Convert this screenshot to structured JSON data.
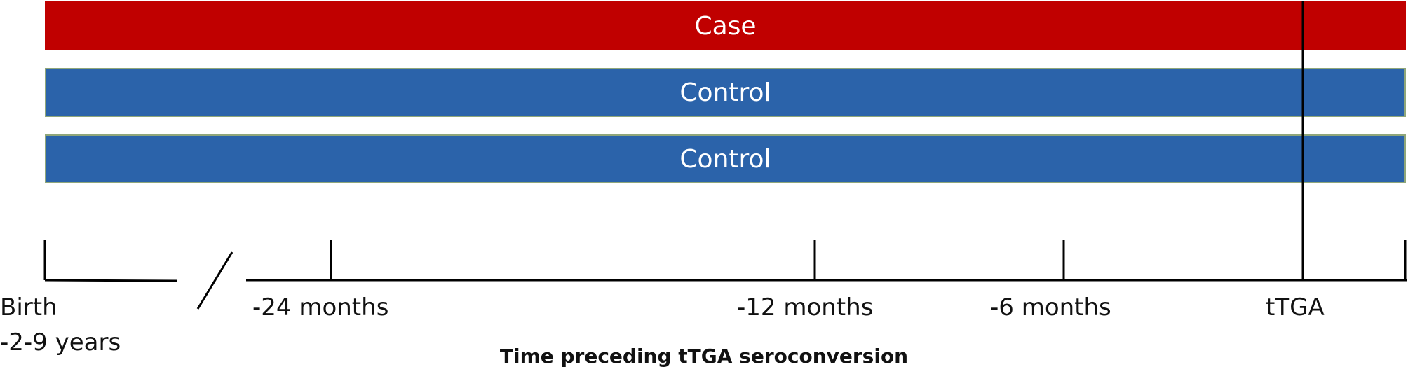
{
  "bars": {
    "case_label": "Case",
    "control1_label": "Control",
    "control2_label": "Control"
  },
  "timeline": {
    "ticks": [
      {
        "key": "birth",
        "label": "Birth",
        "sublabel": "-2-9 years"
      },
      {
        "key": "m24",
        "label": "-24 months"
      },
      {
        "key": "m12",
        "label": "-12 months"
      },
      {
        "key": "m6",
        "label": "-6 months"
      },
      {
        "key": "ttga",
        "label": "tTGA"
      }
    ],
    "caption": "Time preceding tTGA seroconversion"
  },
  "colors": {
    "case": "#c00000",
    "control": "#2b63aa",
    "line": "#000000"
  }
}
